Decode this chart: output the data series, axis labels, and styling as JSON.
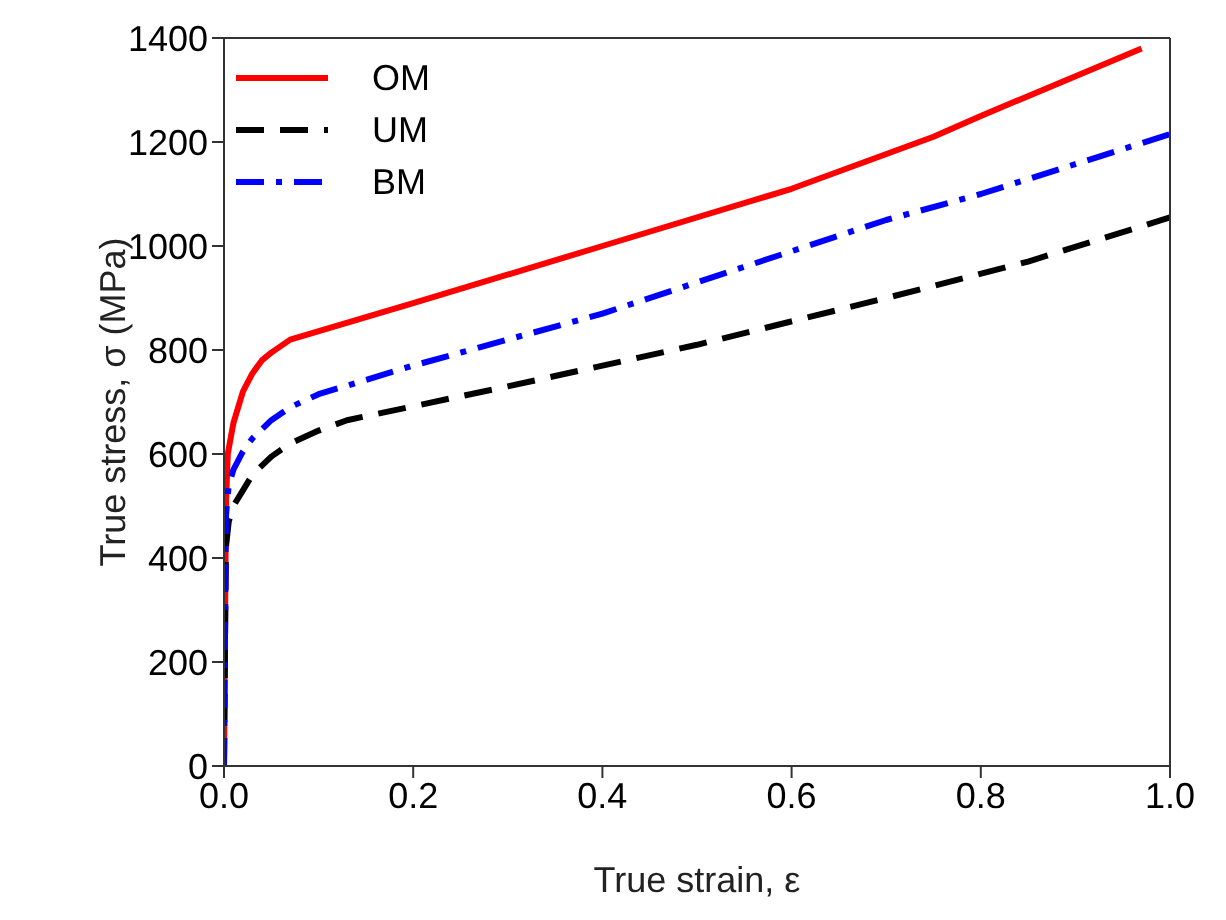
{
  "chart_data": {
    "type": "line",
    "xlabel": "True strain, ε",
    "ylabel": "True stress, σ (MPa)",
    "xlim": [
      0,
      1.0
    ],
    "xticks": [
      {
        "value": 0,
        "label": "0.0"
      },
      {
        "value": 0.2,
        "label": "0.2"
      },
      {
        "value": 0.4,
        "label": "0.4"
      },
      {
        "value": 0.6,
        "label": "0.6"
      },
      {
        "value": 0.8,
        "label": "0.8"
      },
      {
        "value": 1.0,
        "label": "1.0"
      }
    ],
    "ylim": [
      0,
      1400
    ],
    "yticks": [
      0,
      200,
      400,
      600,
      800,
      1000,
      1200,
      1400
    ],
    "grid": false,
    "legend": "top left",
    "marker": "none",
    "series": [
      {
        "name": "OM",
        "color": "#ff0000",
        "line_style": "solid",
        "x": [
          0,
          0.002,
          0.004,
          0.01,
          0.02,
          0.03,
          0.04,
          0.05,
          0.07,
          0.2,
          0.4,
          0.6,
          0.75,
          0.8,
          0.97
        ],
        "values": [
          0,
          500,
          600,
          660,
          720,
          755,
          780,
          795,
          820,
          890,
          1000,
          1110,
          1210,
          1250,
          1380
        ]
      },
      {
        "name": "UM",
        "color": "#000000",
        "line_style": "dashed",
        "x": [
          0,
          0.002,
          0.005,
          0.01,
          0.02,
          0.03,
          0.05,
          0.07,
          0.1,
          0.13,
          0.3,
          0.5,
          0.7,
          0.85,
          1.0
        ],
        "values": [
          0,
          420,
          470,
          500,
          530,
          560,
          595,
          620,
          645,
          665,
          730,
          810,
          900,
          970,
          1055
        ]
      },
      {
        "name": "BM",
        "color": "#0000ff",
        "line_style": "dashdot",
        "x": [
          0,
          0.002,
          0.005,
          0.01,
          0.02,
          0.03,
          0.05,
          0.07,
          0.1,
          0.2,
          0.4,
          0.6,
          0.7,
          0.8,
          1.0
        ],
        "values": [
          0,
          480,
          540,
          570,
          605,
          630,
          665,
          690,
          715,
          770,
          870,
          990,
          1050,
          1100,
          1215
        ]
      }
    ]
  }
}
